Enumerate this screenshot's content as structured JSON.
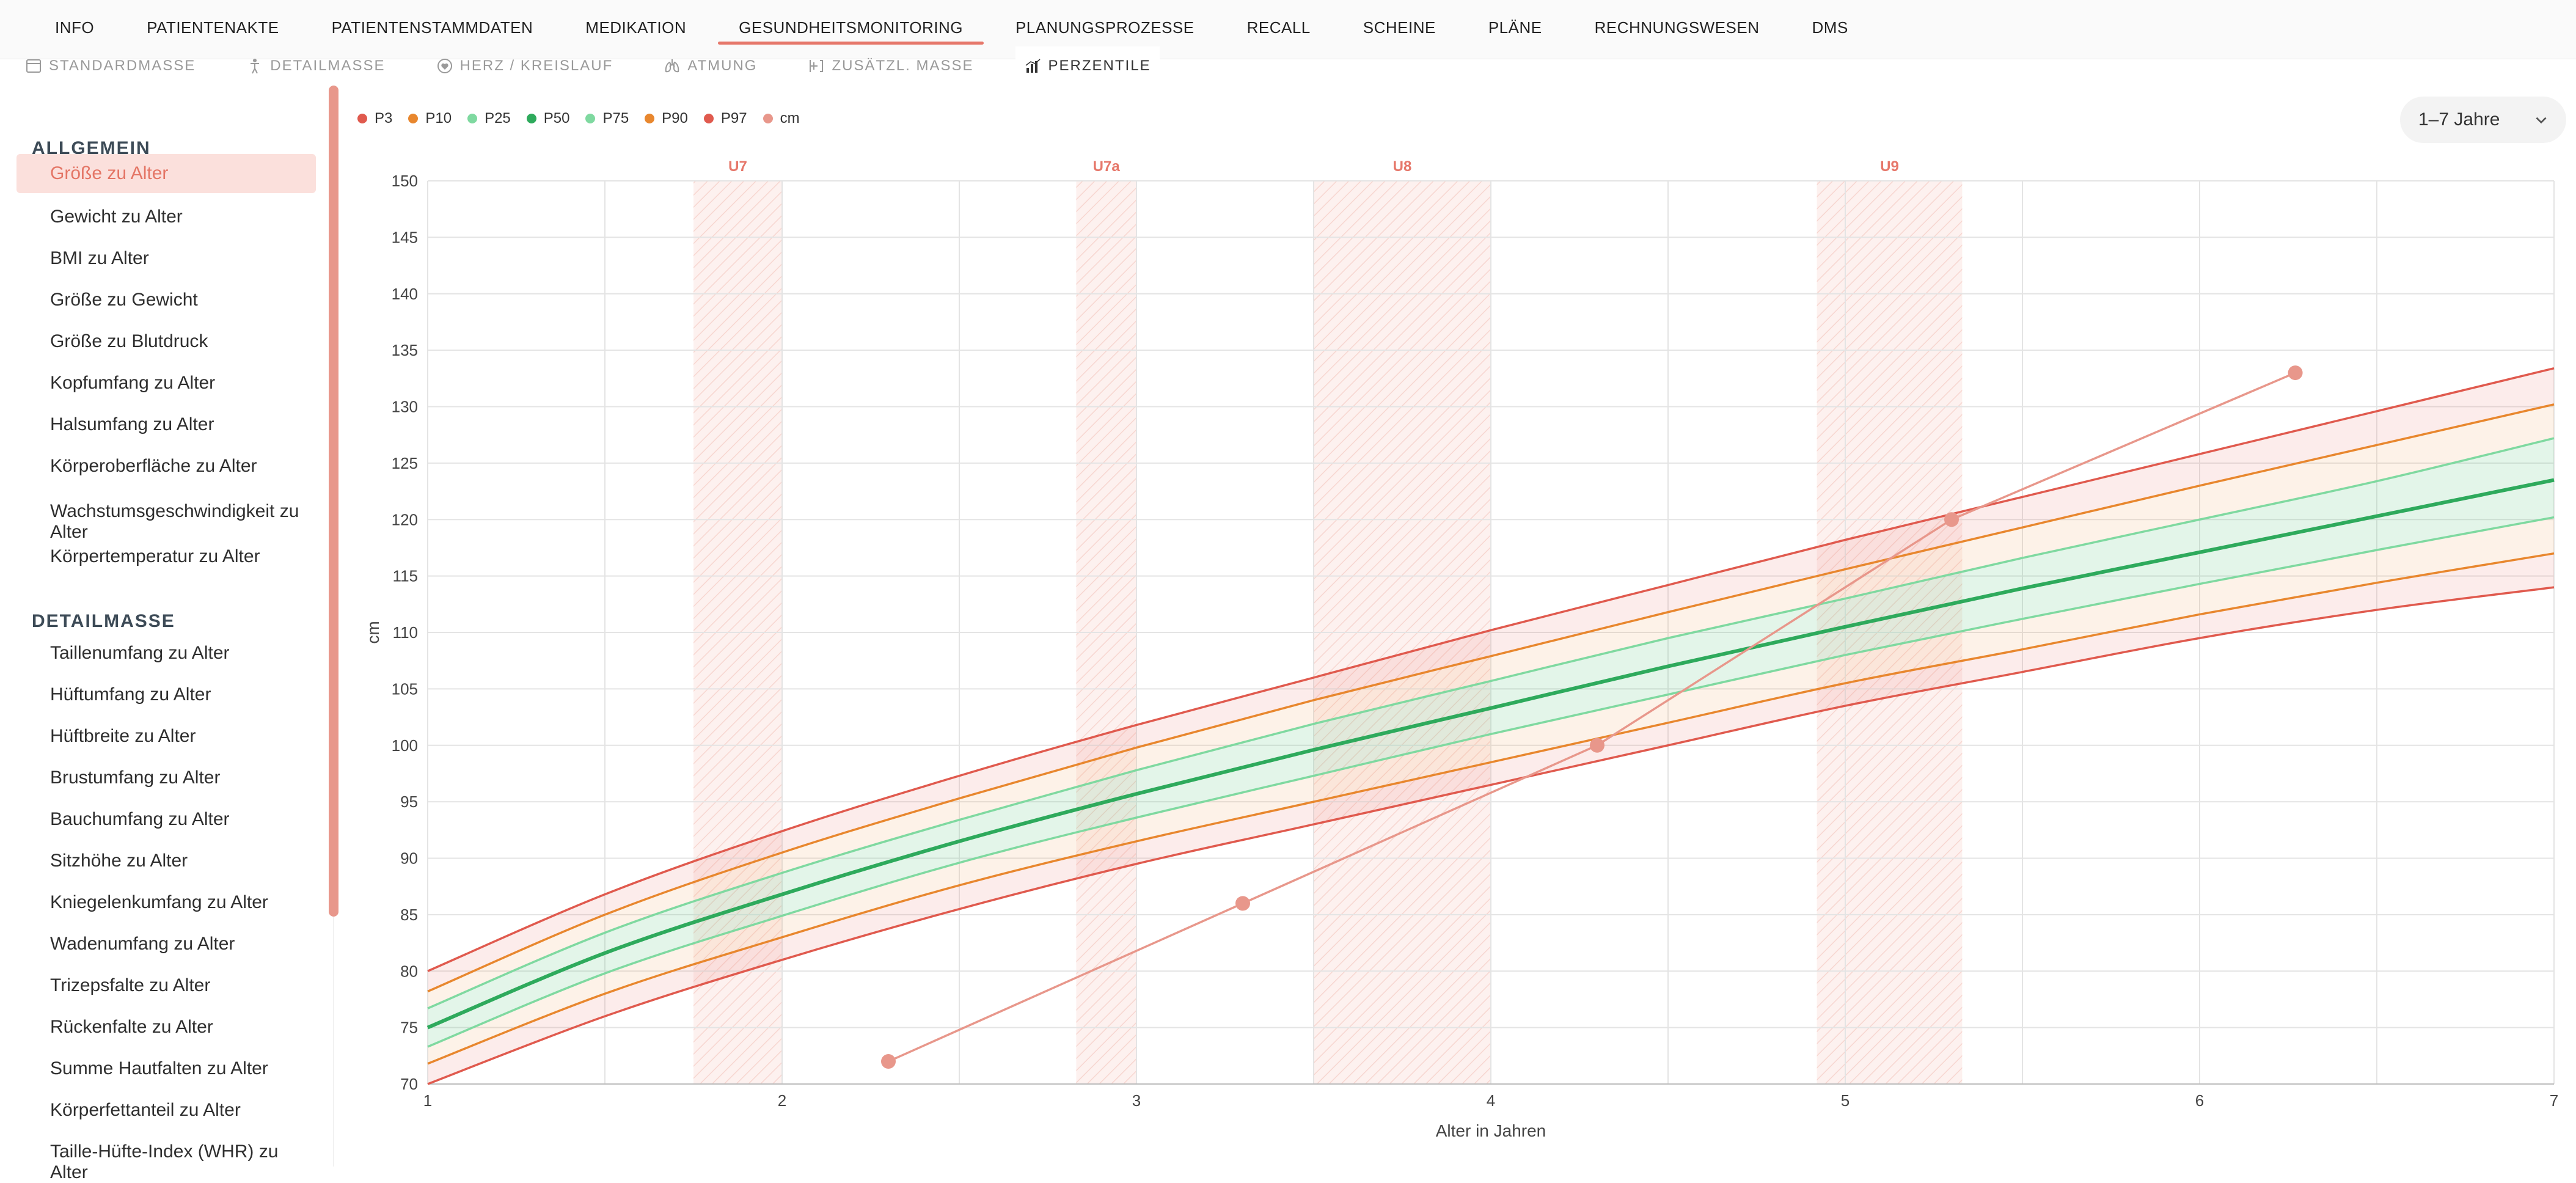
{
  "nav": {
    "tabs": [
      "INFO",
      "PATIENTENAKTE",
      "PATIENTENSTAMMDATEN",
      "MEDIKATION",
      "GESUNDHEITSMONITORING",
      "PLANUNGSPROZESSE",
      "RECALL",
      "SCHEINE",
      "PLÄNE",
      "RECHNUNGSWESEN",
      "DMS"
    ],
    "active_tab": "GESUNDHEITSMONITORING"
  },
  "subnav": [
    {
      "label": "STANDARDMASSE",
      "icon": "ruler-card-icon"
    },
    {
      "label": "DETAILMASSE",
      "icon": "body-icon"
    },
    {
      "label": "HERZ / KREISLAUF",
      "icon": "heart-circle-icon"
    },
    {
      "label": "ATMUNG",
      "icon": "lungs-icon"
    },
    {
      "label": "ZUSÄTZL. MASSE",
      "icon": "plus-bracket-icon"
    },
    {
      "label": "PERZENTILE",
      "icon": "bar-chart-icon",
      "active": true
    }
  ],
  "sidebar": {
    "sections": [
      {
        "title": "ALLGEMEIN",
        "items": [
          "Größe zu Alter",
          "Gewicht zu Alter",
          "BMI zu Alter",
          "Größe zu Gewicht",
          "Größe zu Blutdruck",
          "Kopfumfang zu Alter",
          "Halsumfang zu Alter",
          "Körperoberfläche zu Alter",
          "Wachstumsgeschwindigkeit zu Alter",
          "Körpertemperatur zu Alter"
        ]
      },
      {
        "title": "DETAILMASSE",
        "items": [
          "Taillenumfang zu Alter",
          "Hüftumfang zu Alter",
          "Hüftbreite zu Alter",
          "Brustumfang zu Alter",
          "Bauchumfang zu Alter",
          "Sitzhöhe zu Alter",
          "Kniegelenkumfang zu Alter",
          "Wadenumfang zu Alter",
          "Trizepsfalte zu Alter",
          "Rückenfalte zu Alter",
          "Summe Hautfalten zu Alter",
          "Körperfettanteil zu Alter",
          "Taille-Hüfte-Index (WHR) zu Alter"
        ]
      }
    ],
    "active_item": "Größe zu Alter"
  },
  "range_select": {
    "value": "1–7 Jahre",
    "icon": "chevron-down-icon"
  },
  "colors": {
    "accent": "#e6776a",
    "p3": "#e05a4e",
    "p10": "#e8872e",
    "p25": "#7fd9a0",
    "p50": "#2eaa5c",
    "p75": "#7fd9a0",
    "p90": "#e8872e",
    "p97": "#e05a4e",
    "cm": "#e8978b"
  },
  "chart_data": {
    "type": "line",
    "xlabel": "Alter in Jahren",
    "ylabel": "cm",
    "xlim": [
      1,
      7
    ],
    "ylim": [
      70,
      150
    ],
    "x_ticks": [
      1,
      2,
      3,
      4,
      5,
      6,
      7
    ],
    "y_ticks": [
      70,
      75,
      80,
      85,
      90,
      95,
      100,
      105,
      110,
      115,
      120,
      125,
      130,
      135,
      140,
      145,
      150
    ],
    "grid": true,
    "legend_position": "top-left",
    "exam_bands": [
      {
        "label": "U7",
        "from": 1.75,
        "to": 2.0
      },
      {
        "label": "U7a",
        "from": 2.83,
        "to": 3.0
      },
      {
        "label": "U8",
        "from": 3.5,
        "to": 4.0
      },
      {
        "label": "U9",
        "from": 4.92,
        "to": 5.33
      }
    ],
    "percentile_x": [
      1,
      1.5,
      2,
      2.5,
      3,
      3.5,
      4,
      4.5,
      5,
      5.5,
      6,
      6.5,
      7
    ],
    "series": [
      {
        "name": "P3",
        "values": [
          70,
          76,
          81,
          85.5,
          89.5,
          93,
          96.5,
          100,
          103.5,
          106.5,
          109.5,
          112,
          114
        ]
      },
      {
        "name": "P10",
        "values": [
          71.8,
          78,
          83,
          87.6,
          91.5,
          95,
          98.5,
          102,
          105.5,
          108.5,
          111.6,
          114.4,
          117
        ]
      },
      {
        "name": "P25",
        "values": [
          73.3,
          79.8,
          84.9,
          89.6,
          93.6,
          97.3,
          101,
          104.5,
          108,
          111.2,
          114.3,
          117.3,
          120.2
        ]
      },
      {
        "name": "P50",
        "values": [
          75,
          81.6,
          86.8,
          91.5,
          95.7,
          99.6,
          103.3,
          107,
          110.5,
          113.9,
          117.1,
          120.3,
          123.5
        ]
      },
      {
        "name": "P75",
        "values": [
          76.7,
          83.4,
          88.7,
          93.4,
          97.8,
          101.9,
          105.7,
          109.5,
          113,
          116.6,
          120,
          123.4,
          127.2
        ]
      },
      {
        "name": "P90",
        "values": [
          78.2,
          85,
          90.5,
          95.3,
          99.8,
          104,
          107.9,
          111.8,
          115.6,
          119.3,
          123,
          126.6,
          130.2
        ]
      },
      {
        "name": "P97",
        "values": [
          80,
          86.8,
          92.4,
          97.3,
          101.8,
          106,
          110.2,
          114.2,
          118.2,
          122,
          125.8,
          129.6,
          133.4
        ]
      },
      {
        "name": "cm",
        "x": [
          2.3,
          3.3,
          4.3,
          5.3,
          6.27
        ],
        "values": [
          72,
          86,
          100,
          120,
          133
        ]
      }
    ]
  }
}
